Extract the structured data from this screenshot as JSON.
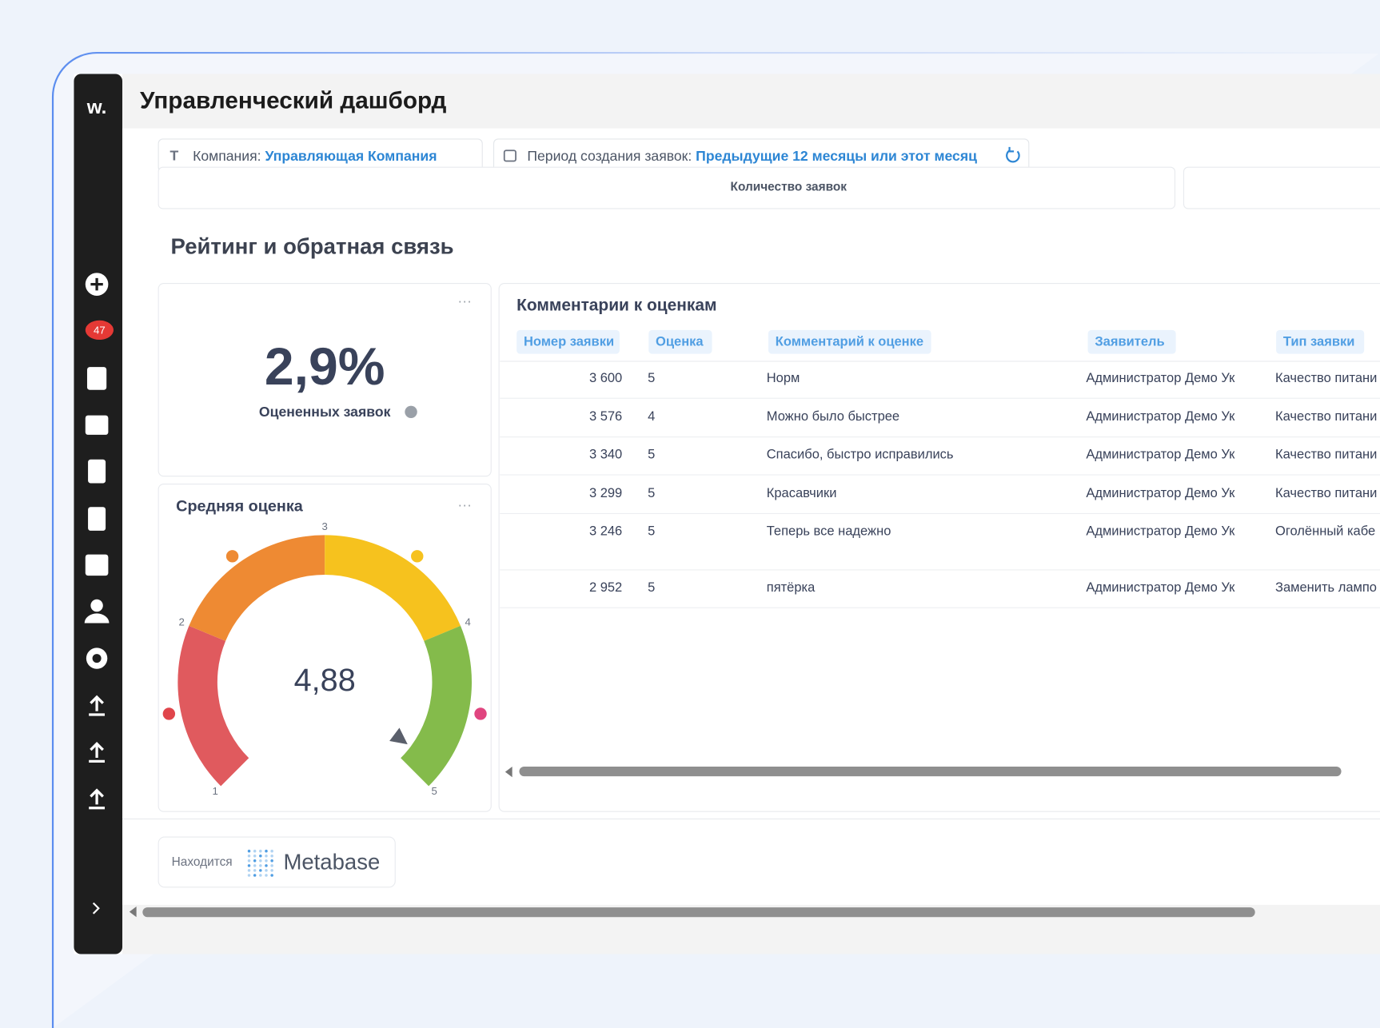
{
  "sidebar": {
    "logo": "w.",
    "badge": "47"
  },
  "header": {
    "title": "Управленческий дашборд"
  },
  "filters": [
    {
      "label": "Компания:",
      "value": "Управляющая Компания"
    },
    {
      "label": "Период создания заявок:",
      "value": "Предыдущие 12 месяцы или этот месяц"
    }
  ],
  "cut_card_title": "Количество заявок",
  "section_title": "Рейтинг и обратная связь",
  "kpi": {
    "value": "2,9%",
    "label": "Оцененных заявок"
  },
  "gauge": {
    "title": "Средняя оценка",
    "value": 4.88,
    "value_label": "4,88",
    "min": 1,
    "max": 5,
    "ticks": [
      1,
      2,
      3,
      4,
      5
    ],
    "segment_colors": [
      "#e05a5e",
      "#ee8a33",
      "#f6c21e",
      "#84bb4b"
    ]
  },
  "table": {
    "title": "Комментарии к оценкам",
    "columns": [
      "Номер заявки",
      "Оценка",
      "Комментарий к оценке",
      "Заявитель",
      "Тип заявки"
    ],
    "rows": [
      [
        "3 600",
        "5",
        "Норм",
        "Администратор Демо Ук",
        "Качество питани"
      ],
      [
        "3 576",
        "4",
        "Можно было быстрее",
        "Администратор Демо Ук",
        "Качество питани"
      ],
      [
        "3 340",
        "5",
        "Спасибо, быстро исправились",
        "Администратор Демо Ук",
        "Качество питани"
      ],
      [
        "3 299",
        "5",
        "Красавчики",
        "Администратор Демо Ук",
        "Качество питани"
      ],
      [
        "3 246",
        "5",
        "Теперь все надежно",
        "Администратор Демо Ук",
        "Оголённый кабе"
      ],
      [
        "2 952",
        "5",
        "пятёрка",
        "Администратор Демо Ук",
        "Заменить лампо"
      ]
    ]
  },
  "footer": {
    "prefix": "Находится",
    "brand": "Metabase"
  }
}
